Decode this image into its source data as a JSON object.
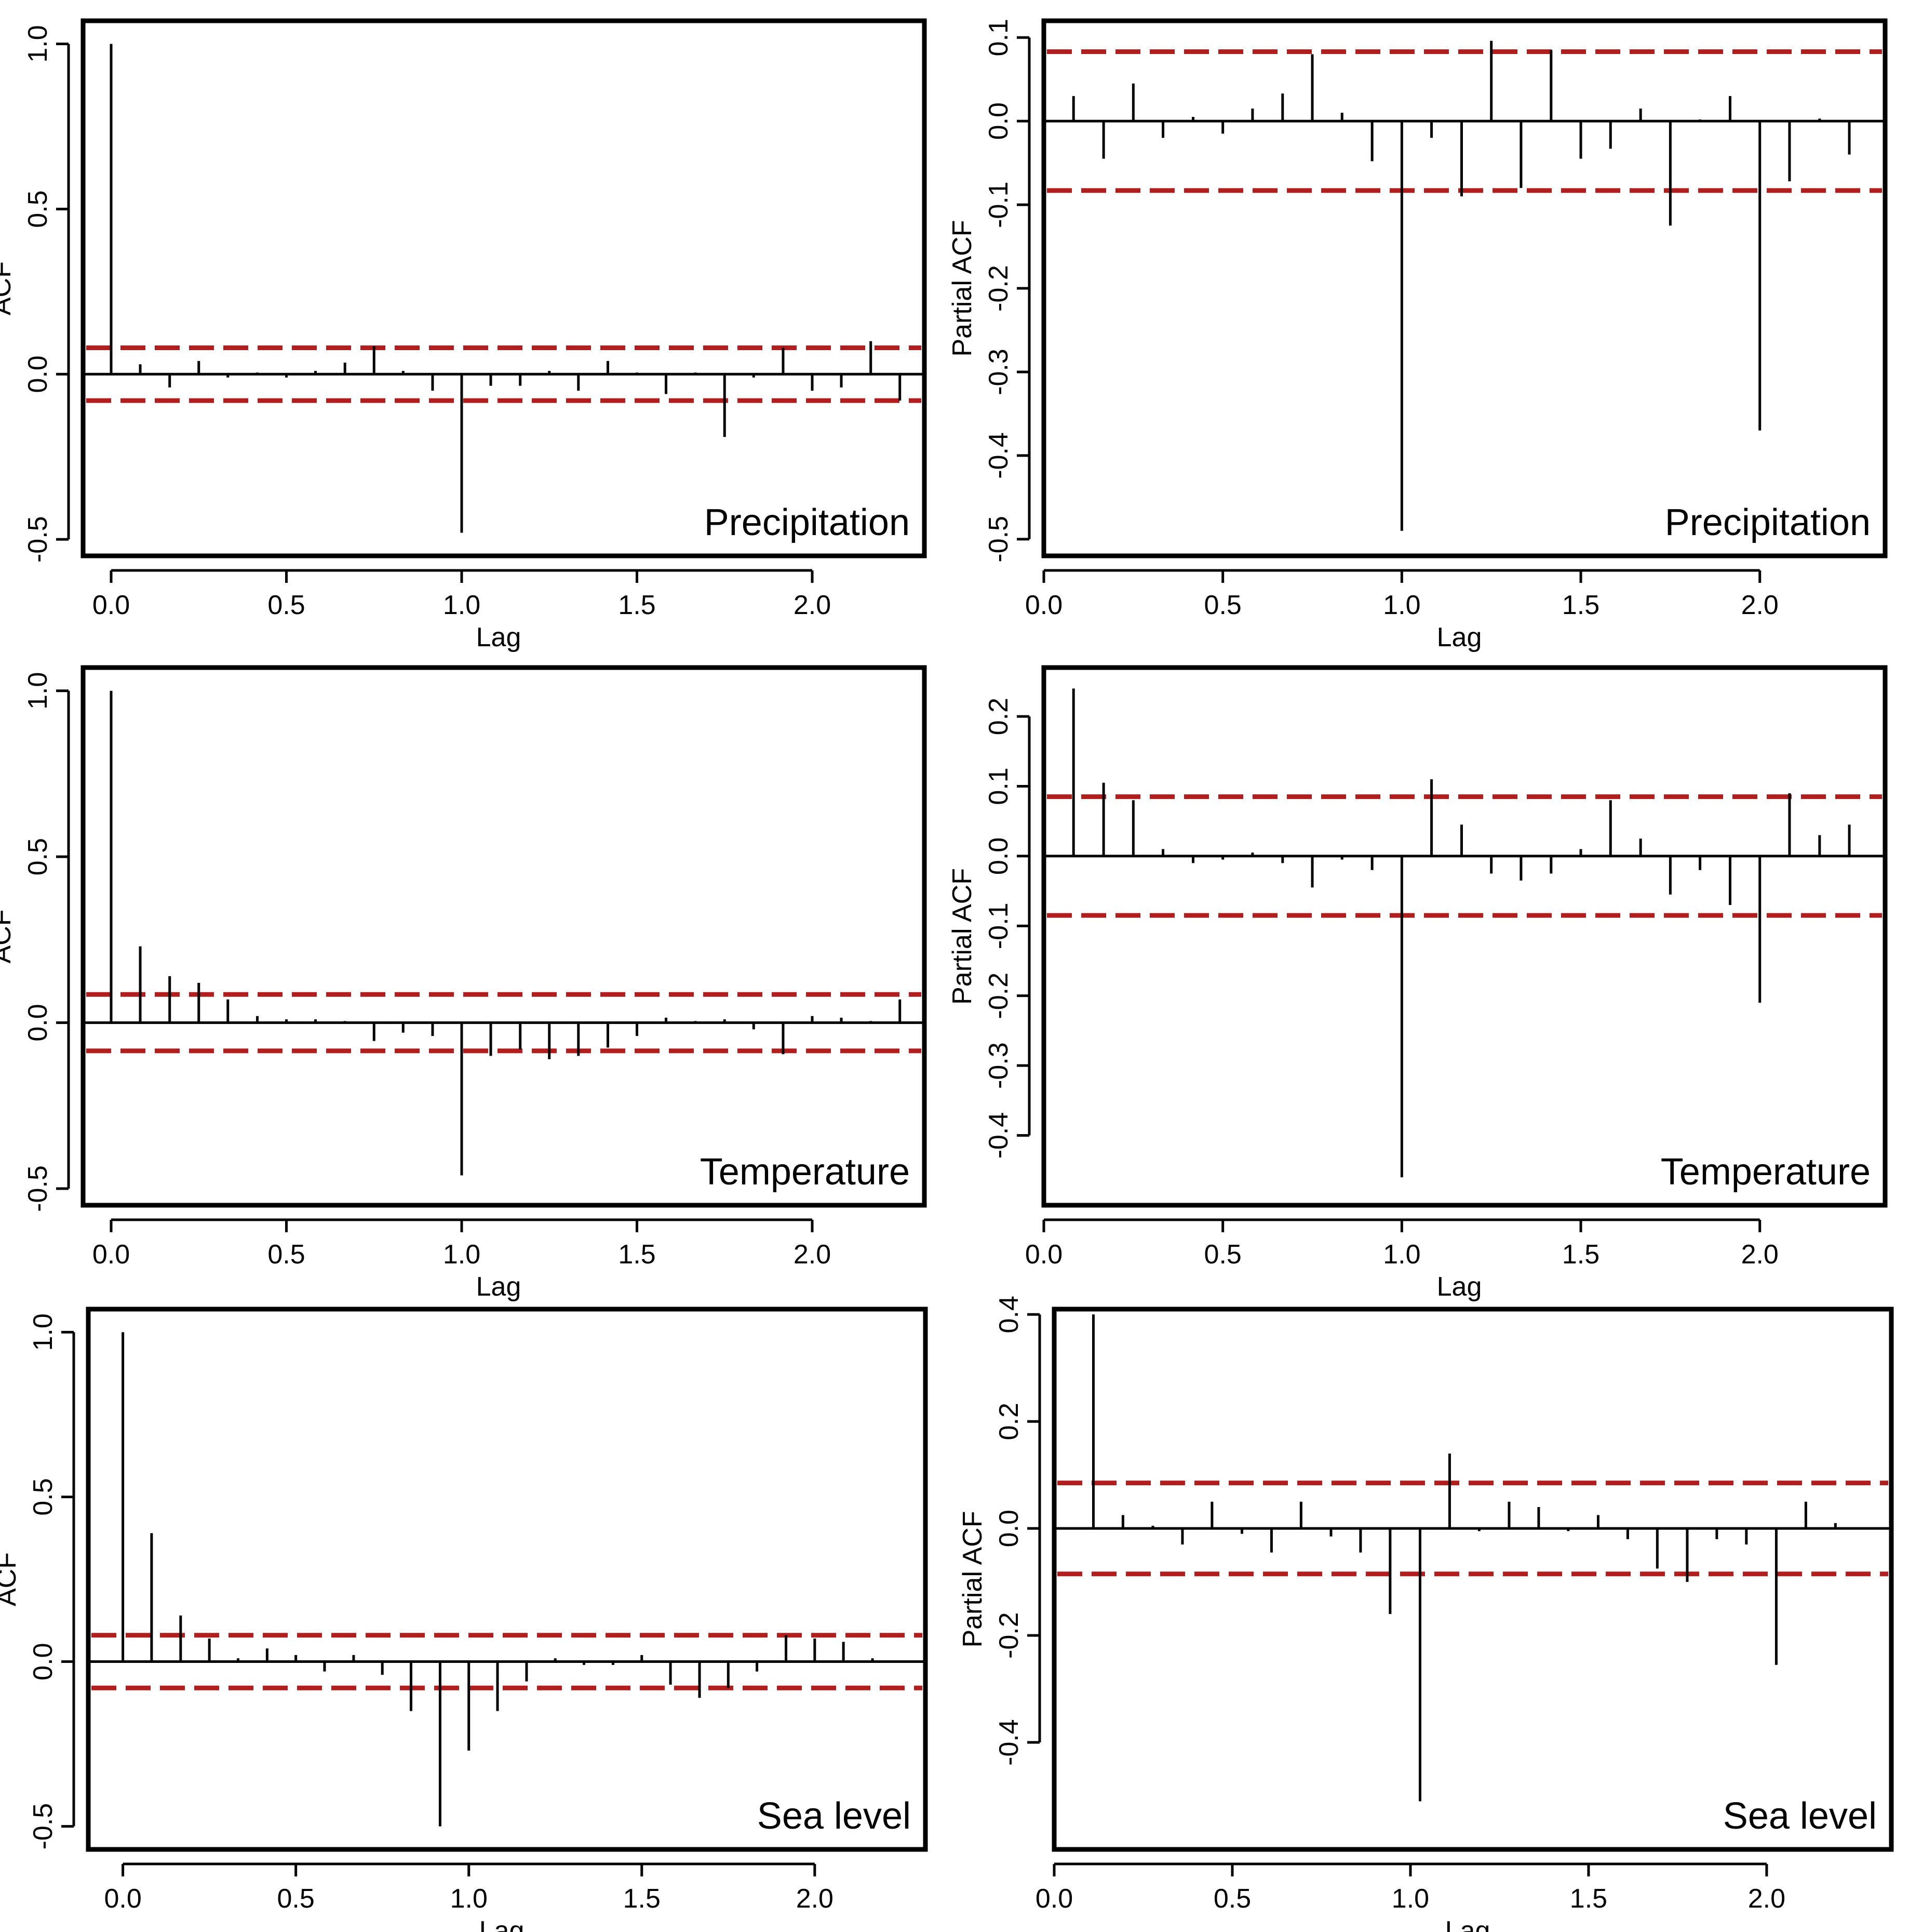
{
  "chart_data": [
    {
      "type": "bar",
      "panel_label": "Precipitation",
      "xlabel": "Lag",
      "ylabel": "ACF",
      "xlim": [
        -0.08,
        2.32
      ],
      "ylim": [
        -0.55,
        1.07
      ],
      "xticks": [
        0.0,
        0.5,
        1.0,
        1.5,
        2.0
      ],
      "xtick_labels": [
        "0.0",
        "0.5",
        "1.0",
        "1.5",
        "2.0"
      ],
      "yticks": [
        -0.5,
        0.0,
        0.5,
        1.0
      ],
      "ytick_labels": [
        "-0.5",
        "0.0",
        "0.5",
        "1.0"
      ],
      "ci": [
        0.08,
        -0.08
      ],
      "lags": [
        0.0,
        0.083,
        0.167,
        0.25,
        0.333,
        0.417,
        0.5,
        0.583,
        0.667,
        0.75,
        0.833,
        0.917,
        1.0,
        1.083,
        1.167,
        1.25,
        1.333,
        1.417,
        1.5,
        1.583,
        1.667,
        1.75,
        1.833,
        1.917,
        2.0,
        2.083,
        2.167,
        2.25
      ],
      "values": [
        1.0,
        0.03,
        -0.04,
        0.04,
        -0.01,
        0.005,
        -0.01,
        0.01,
        0.035,
        0.085,
        0.01,
        -0.05,
        -0.48,
        -0.035,
        -0.035,
        0.01,
        -0.05,
        0.04,
        0.005,
        -0.06,
        0.005,
        -0.19,
        -0.01,
        0.08,
        -0.05,
        -0.04,
        0.1,
        -0.08
      ]
    },
    {
      "type": "bar",
      "panel_label": "Precipitation",
      "xlabel": "Lag",
      "ylabel": "Partial ACF",
      "xlim": [
        0.0,
        2.35
      ],
      "ylim": [
        -0.52,
        0.12
      ],
      "xticks": [
        0.0,
        0.5,
        1.0,
        1.5,
        2.0
      ],
      "xtick_labels": [
        "0.0",
        "0.5",
        "1.0",
        "1.5",
        "2.0"
      ],
      "yticks": [
        -0.5,
        -0.4,
        -0.3,
        -0.2,
        -0.1,
        0.0,
        0.1
      ],
      "ytick_labels": [
        "-0.5",
        "-0.4",
        "-0.3",
        "-0.2",
        "-0.1",
        "0.0",
        "0.1"
      ],
      "ci": [
        0.083,
        -0.083
      ],
      "lags": [
        0.083,
        0.167,
        0.25,
        0.333,
        0.417,
        0.5,
        0.583,
        0.667,
        0.75,
        0.833,
        0.917,
        1.0,
        1.083,
        1.167,
        1.25,
        1.333,
        1.417,
        1.5,
        1.583,
        1.667,
        1.75,
        1.833,
        1.917,
        2.0,
        2.083,
        2.167,
        2.25
      ],
      "values": [
        0.03,
        -0.045,
        0.045,
        -0.02,
        0.005,
        -0.015,
        0.015,
        0.033,
        0.08,
        0.01,
        -0.048,
        -0.49,
        -0.02,
        -0.09,
        0.096,
        -0.08,
        0.085,
        -0.045,
        -0.033,
        0.015,
        -0.125,
        0.002,
        0.03,
        -0.37,
        -0.072,
        0.003,
        -0.04
      ]
    },
    {
      "type": "bar",
      "panel_label": "Temperature",
      "xlabel": "Lag",
      "ylabel": "ACF",
      "xlim": [
        -0.08,
        2.32
      ],
      "ylim": [
        -0.55,
        1.07
      ],
      "xticks": [
        0.0,
        0.5,
        1.0,
        1.5,
        2.0
      ],
      "xtick_labels": [
        "0.0",
        "0.5",
        "1.0",
        "1.5",
        "2.0"
      ],
      "yticks": [
        -0.5,
        0.0,
        0.5,
        1.0
      ],
      "ytick_labels": [
        "-0.5",
        "0.0",
        "0.5",
        "1.0"
      ],
      "ci": [
        0.085,
        -0.085
      ],
      "lags": [
        0.0,
        0.083,
        0.167,
        0.25,
        0.333,
        0.417,
        0.5,
        0.583,
        0.667,
        0.75,
        0.833,
        0.917,
        1.0,
        1.083,
        1.167,
        1.25,
        1.333,
        1.417,
        1.5,
        1.583,
        1.667,
        1.75,
        1.833,
        1.917,
        2.0,
        2.083,
        2.167,
        2.25
      ],
      "values": [
        1.0,
        0.23,
        0.14,
        0.12,
        0.07,
        0.02,
        0.01,
        0.01,
        0.005,
        -0.055,
        -0.03,
        -0.04,
        -0.46,
        -0.1,
        -0.08,
        -0.11,
        -0.1,
        -0.075,
        -0.04,
        0.015,
        0.005,
        0.01,
        -0.02,
        -0.095,
        0.02,
        0.015,
        0.005,
        0.07
      ]
    },
    {
      "type": "bar",
      "panel_label": "Temperature",
      "xlabel": "Lag",
      "ylabel": "Partial ACF",
      "xlim": [
        0.0,
        2.35
      ],
      "ylim": [
        -0.5,
        0.27
      ],
      "xticks": [
        0.0,
        0.5,
        1.0,
        1.5,
        2.0
      ],
      "xtick_labels": [
        "0.0",
        "0.5",
        "1.0",
        "1.5",
        "2.0"
      ],
      "yticks": [
        -0.4,
        -0.3,
        -0.2,
        -0.1,
        0.0,
        0.1,
        0.2
      ],
      "ytick_labels": [
        "-0.4",
        "-0.3",
        "-0.2",
        "-0.1",
        "0.0",
        "0.1",
        "0.2"
      ],
      "ci": [
        0.085,
        -0.085
      ],
      "lags": [
        0.083,
        0.167,
        0.25,
        0.333,
        0.417,
        0.5,
        0.583,
        0.667,
        0.75,
        0.833,
        0.917,
        1.0,
        1.083,
        1.167,
        1.25,
        1.333,
        1.417,
        1.5,
        1.583,
        1.667,
        1.75,
        1.833,
        1.917,
        2.0,
        2.083,
        2.167,
        2.25
      ],
      "values": [
        0.24,
        0.105,
        0.08,
        0.01,
        -0.01,
        -0.005,
        0.005,
        -0.01,
        -0.045,
        -0.005,
        -0.02,
        -0.46,
        0.11,
        0.045,
        -0.025,
        -0.035,
        -0.025,
        0.01,
        0.08,
        0.025,
        -0.055,
        -0.02,
        -0.07,
        -0.21,
        0.09,
        0.03,
        0.045
      ]
    },
    {
      "type": "bar",
      "panel_label": "Sea level",
      "xlabel": "Lag",
      "ylabel": "ACF",
      "xlim": [
        -0.1,
        2.32
      ],
      "ylim": [
        -0.57,
        1.07
      ],
      "xticks": [
        0.0,
        0.5,
        1.0,
        1.5,
        2.0
      ],
      "xtick_labels": [
        "0.0",
        "0.5",
        "1.0",
        "1.5",
        "2.0"
      ],
      "yticks": [
        -0.5,
        0.0,
        0.5,
        1.0
      ],
      "ytick_labels": [
        "-0.5",
        "0.0",
        "0.5",
        "1.0"
      ],
      "ci": [
        0.08,
        -0.08
      ],
      "lags": [
        0.0,
        0.083,
        0.167,
        0.25,
        0.333,
        0.417,
        0.5,
        0.583,
        0.667,
        0.75,
        0.833,
        0.917,
        1.0,
        1.083,
        1.167,
        1.25,
        1.333,
        1.417,
        1.5,
        1.583,
        1.667,
        1.75,
        1.833,
        1.917,
        2.0,
        2.083,
        2.167,
        2.25
      ],
      "values": [
        1.0,
        0.39,
        0.14,
        0.07,
        0.01,
        0.04,
        0.02,
        -0.03,
        0.02,
        -0.04,
        -0.15,
        -0.5,
        -0.27,
        -0.15,
        -0.06,
        0.01,
        -0.01,
        -0.01,
        0.02,
        -0.07,
        -0.11,
        -0.08,
        -0.03,
        0.08,
        0.07,
        0.06,
        0.01,
        0.0
      ]
    },
    {
      "type": "bar",
      "panel_label": "Sea level",
      "xlabel": "Lag",
      "ylabel": "Partial ACF",
      "xlim": [
        0.0,
        2.35
      ],
      "ylim": [
        -0.6,
        0.41
      ],
      "xticks": [
        0.0,
        0.5,
        1.0,
        1.5,
        2.0
      ],
      "xtick_labels": [
        "0.0",
        "0.5",
        "1.0",
        "1.5",
        "2.0"
      ],
      "yticks": [
        -0.4,
        -0.2,
        0.0,
        0.2,
        0.4
      ],
      "ytick_labels": [
        "-0.4",
        "-0.2",
        "0.0",
        "0.2",
        "0.4"
      ],
      "ci": [
        0.085,
        -0.085
      ],
      "lags": [
        0.11,
        0.193,
        0.277,
        0.36,
        0.443,
        0.527,
        0.61,
        0.693,
        0.777,
        0.86,
        0.943,
        1.027,
        1.11,
        1.193,
        1.277,
        1.36,
        1.443,
        1.527,
        1.61,
        1.693,
        1.777,
        1.86,
        1.943,
        2.027,
        2.11,
        2.193
      ],
      "values": [
        0.4,
        0.025,
        0.005,
        -0.03,
        0.05,
        -0.01,
        -0.045,
        0.05,
        -0.015,
        -0.045,
        -0.16,
        -0.51,
        0.14,
        -0.005,
        0.05,
        0.04,
        -0.005,
        0.025,
        -0.02,
        -0.075,
        -0.1,
        -0.02,
        -0.03,
        -0.255,
        0.05,
        0.01
      ]
    }
  ]
}
